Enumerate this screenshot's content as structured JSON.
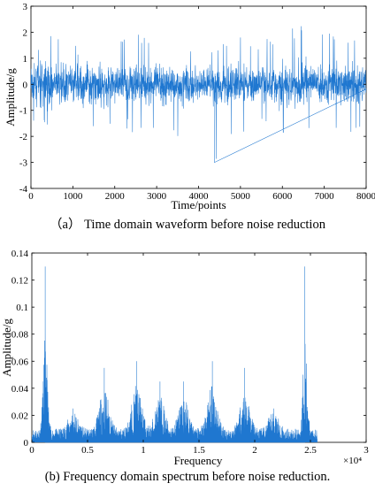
{
  "chart_data": [
    {
      "type": "line",
      "title": "",
      "xlabel": "Time/points",
      "ylabel": "Amplitude/g",
      "xlim": [
        0,
        8000
      ],
      "ylim": [
        -4,
        3
      ],
      "x_ticks": [
        "0",
        "1000",
        "2000",
        "3000",
        "4000",
        "5000",
        "6000",
        "7000",
        "8000"
      ],
      "y_ticks": [
        "-4",
        "-3",
        "-2",
        "-1",
        "0",
        "1",
        "2",
        "3"
      ],
      "grid": false,
      "color": "#1f77d0",
      "caption": "（a） Time domain waveform before noise reduction",
      "series": [
        {
          "description": "vibration signal, noisy, mostly within ±1.5 g",
          "x": [
            0,
            200,
            500,
            1000,
            1500,
            2000,
            2100,
            2200,
            2600,
            3000,
            3500,
            4000,
            4350,
            4400,
            4800,
            5000,
            5500,
            6000,
            6450,
            6560,
            6800,
            7000,
            7500,
            8000
          ],
          "y_max_envelope": [
            1.7,
            1.6,
            1.9,
            1.5,
            1.6,
            2.1,
            2.4,
            2.0,
            1.9,
            1.8,
            1.5,
            1.6,
            1.4,
            1.6,
            1.7,
            1.8,
            1.7,
            2.1,
            2.3,
            2.9,
            2.6,
            1.9,
            2.1,
            1.8
          ],
          "y_min_envelope": [
            -1.6,
            -1.5,
            -1.8,
            -1.9,
            -1.7,
            -1.8,
            -2.0,
            -1.9,
            -1.8,
            -1.7,
            -2.0,
            -1.8,
            -1.9,
            -3.0,
            -1.9,
            -2.0,
            -1.8,
            -2.0,
            -2.1,
            -2.3,
            -2.2,
            -2.0,
            -1.9,
            -1.7
          ]
        }
      ]
    },
    {
      "type": "line",
      "title": "",
      "xlabel": "Frequency",
      "ylabel": "Amplitude/g",
      "xlim": [
        0,
        3
      ],
      "ylim": [
        0,
        0.14
      ],
      "x_multiplier": "×10⁴",
      "x_ticks": [
        "0",
        "0.5",
        "1",
        "1.5",
        "2",
        "2.5",
        "3"
      ],
      "y_ticks": [
        "0",
        "0.02",
        "0.04",
        "0.06",
        "0.08",
        "0.1",
        "0.12",
        "0.14"
      ],
      "grid": false,
      "color": "#1f77d0",
      "caption": "(b) Frequency domain spectrum before noise reduction.",
      "series": [
        {
          "description": "amplitude spectrum, mirrored about 1.28e4",
          "peaks_x": [
            0.12,
            0.37,
            0.65,
            0.94,
            1.15,
            1.36,
            1.62,
            1.91,
            2.17,
            2.45
          ],
          "peaks_y": [
            0.13,
            0.025,
            0.055,
            0.06,
            0.045,
            0.045,
            0.06,
            0.055,
            0.025,
            0.13
          ],
          "noise_floor": 0.01,
          "x_end": 2.56
        }
      ]
    }
  ]
}
